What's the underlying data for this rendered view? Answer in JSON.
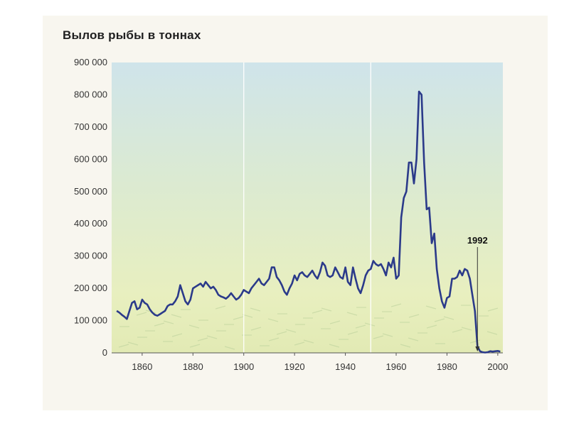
{
  "chart_data": {
    "type": "line",
    "title": "Вылов рыбы в тоннах",
    "xlabel": "",
    "ylabel": "",
    "xlim": [
      1848,
      2002
    ],
    "ylim": [
      0,
      900000
    ],
    "x_ticks": [
      1860,
      1880,
      1900,
      1920,
      1940,
      1960,
      1980,
      2000
    ],
    "y_ticks": [
      {
        "value": 0,
        "label": "0"
      },
      {
        "value": 100000,
        "label": "100 000"
      },
      {
        "value": 200000,
        "label": "200 000"
      },
      {
        "value": 300000,
        "label": "300 000"
      },
      {
        "value": 400000,
        "label": "400 000"
      },
      {
        "value": 500000,
        "label": "500 000"
      },
      {
        "value": 600000,
        "label": "600 000"
      },
      {
        "value": 700000,
        "label": "700 000"
      },
      {
        "value": 800000,
        "label": "800 000"
      },
      {
        "value": 900000,
        "label": "900 000"
      }
    ],
    "grid": {
      "vertical_at": [
        1900,
        1950
      ]
    },
    "line_color": "#2b3a8a",
    "annotation": {
      "label": "1992",
      "x": 1992,
      "y": 0
    },
    "series": [
      {
        "name": "",
        "points": [
          [
            1850,
            130000
          ],
          [
            1851,
            125000
          ],
          [
            1852,
            118000
          ],
          [
            1853,
            112000
          ],
          [
            1854,
            105000
          ],
          [
            1855,
            130000
          ],
          [
            1856,
            155000
          ],
          [
            1857,
            160000
          ],
          [
            1858,
            135000
          ],
          [
            1859,
            140000
          ],
          [
            1860,
            165000
          ],
          [
            1861,
            155000
          ],
          [
            1862,
            150000
          ],
          [
            1863,
            135000
          ],
          [
            1864,
            125000
          ],
          [
            1865,
            118000
          ],
          [
            1866,
            115000
          ],
          [
            1867,
            120000
          ],
          [
            1868,
            125000
          ],
          [
            1869,
            130000
          ],
          [
            1870,
            145000
          ],
          [
            1871,
            150000
          ],
          [
            1872,
            150000
          ],
          [
            1873,
            160000
          ],
          [
            1874,
            175000
          ],
          [
            1875,
            210000
          ],
          [
            1876,
            185000
          ],
          [
            1877,
            160000
          ],
          [
            1878,
            150000
          ],
          [
            1879,
            165000
          ],
          [
            1880,
            200000
          ],
          [
            1881,
            205000
          ],
          [
            1882,
            210000
          ],
          [
            1883,
            215000
          ],
          [
            1884,
            205000
          ],
          [
            1885,
            220000
          ],
          [
            1886,
            210000
          ],
          [
            1887,
            200000
          ],
          [
            1888,
            205000
          ],
          [
            1889,
            195000
          ],
          [
            1890,
            180000
          ],
          [
            1891,
            175000
          ],
          [
            1892,
            172000
          ],
          [
            1893,
            168000
          ],
          [
            1894,
            175000
          ],
          [
            1895,
            185000
          ],
          [
            1896,
            175000
          ],
          [
            1897,
            165000
          ],
          [
            1898,
            170000
          ],
          [
            1899,
            180000
          ],
          [
            1900,
            195000
          ],
          [
            1901,
            190000
          ],
          [
            1902,
            185000
          ],
          [
            1903,
            200000
          ],
          [
            1904,
            210000
          ],
          [
            1905,
            220000
          ],
          [
            1906,
            230000
          ],
          [
            1907,
            215000
          ],
          [
            1908,
            210000
          ],
          [
            1909,
            220000
          ],
          [
            1910,
            230000
          ],
          [
            1911,
            265000
          ],
          [
            1912,
            265000
          ],
          [
            1913,
            235000
          ],
          [
            1914,
            225000
          ],
          [
            1915,
            210000
          ],
          [
            1916,
            190000
          ],
          [
            1917,
            180000
          ],
          [
            1918,
            200000
          ],
          [
            1919,
            215000
          ],
          [
            1920,
            240000
          ],
          [
            1921,
            225000
          ],
          [
            1922,
            245000
          ],
          [
            1923,
            250000
          ],
          [
            1924,
            240000
          ],
          [
            1925,
            235000
          ],
          [
            1926,
            245000
          ],
          [
            1927,
            255000
          ],
          [
            1928,
            240000
          ],
          [
            1929,
            230000
          ],
          [
            1930,
            250000
          ],
          [
            1931,
            280000
          ],
          [
            1932,
            270000
          ],
          [
            1933,
            240000
          ],
          [
            1934,
            235000
          ],
          [
            1935,
            240000
          ],
          [
            1936,
            265000
          ],
          [
            1937,
            250000
          ],
          [
            1938,
            235000
          ],
          [
            1939,
            230000
          ],
          [
            1940,
            265000
          ],
          [
            1941,
            220000
          ],
          [
            1942,
            210000
          ],
          [
            1943,
            265000
          ],
          [
            1944,
            230000
          ],
          [
            1945,
            200000
          ],
          [
            1946,
            185000
          ],
          [
            1947,
            210000
          ],
          [
            1948,
            240000
          ],
          [
            1949,
            255000
          ],
          [
            1950,
            260000
          ],
          [
            1951,
            285000
          ],
          [
            1952,
            275000
          ],
          [
            1953,
            270000
          ],
          [
            1954,
            275000
          ],
          [
            1955,
            260000
          ],
          [
            1956,
            240000
          ],
          [
            1957,
            280000
          ],
          [
            1958,
            265000
          ],
          [
            1959,
            295000
          ],
          [
            1960,
            230000
          ],
          [
            1961,
            240000
          ],
          [
            1962,
            420000
          ],
          [
            1963,
            480000
          ],
          [
            1964,
            500000
          ],
          [
            1965,
            590000
          ],
          [
            1966,
            590000
          ],
          [
            1967,
            525000
          ],
          [
            1968,
            600000
          ],
          [
            1969,
            810000
          ],
          [
            1970,
            800000
          ],
          [
            1971,
            590000
          ],
          [
            1972,
            445000
          ],
          [
            1973,
            450000
          ],
          [
            1974,
            340000
          ],
          [
            1975,
            370000
          ],
          [
            1976,
            260000
          ],
          [
            1977,
            200000
          ],
          [
            1978,
            160000
          ],
          [
            1979,
            140000
          ],
          [
            1980,
            170000
          ],
          [
            1981,
            175000
          ],
          [
            1982,
            230000
          ],
          [
            1983,
            230000
          ],
          [
            1984,
            235000
          ],
          [
            1985,
            255000
          ],
          [
            1986,
            240000
          ],
          [
            1987,
            260000
          ],
          [
            1988,
            255000
          ],
          [
            1989,
            230000
          ],
          [
            1990,
            180000
          ],
          [
            1991,
            130000
          ],
          [
            1992,
            20000
          ],
          [
            1993,
            5000
          ],
          [
            1994,
            2000
          ],
          [
            1995,
            1000
          ],
          [
            1996,
            2000
          ],
          [
            1997,
            5000
          ],
          [
            1998,
            4000
          ],
          [
            1999,
            5000
          ],
          [
            2000,
            6000
          ],
          [
            2001,
            4000
          ]
        ]
      }
    ]
  }
}
